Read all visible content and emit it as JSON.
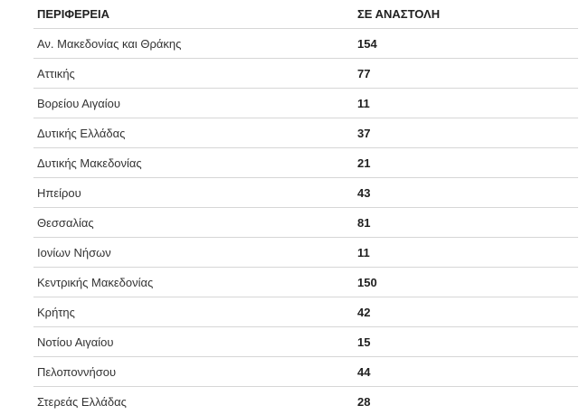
{
  "table": {
    "columns": [
      "ΠΕΡΙΦΕΡΕΙΑ",
      "ΣΕ ΑΝΑΣΤΟΛΗ"
    ],
    "rows": [
      {
        "region": "Αν. Μακεδονίας και Θράκης",
        "suspended": "154"
      },
      {
        "region": "Αττικής",
        "suspended": "77"
      },
      {
        "region": "Βορείου Αιγαίου",
        "suspended": "11"
      },
      {
        "region": "Δυτικής Ελλάδας",
        "suspended": "37"
      },
      {
        "region": "Δυτικής Μακεδονίας",
        "suspended": "21"
      },
      {
        "region": "Ηπείρου",
        "suspended": "43"
      },
      {
        "region": "Θεσσαλίας",
        "suspended": "81"
      },
      {
        "region": "Ιονίων Νήσων",
        "suspended": "11"
      },
      {
        "region": "Κεντρικής Μακεδονίας",
        "suspended": "150"
      },
      {
        "region": "Κρήτης",
        "suspended": "42"
      },
      {
        "region": "Νοτίου Αιγαίου",
        "suspended": "15"
      },
      {
        "region": "Πελοποννήσου",
        "suspended": "44"
      },
      {
        "region": "Στερεάς Ελλάδας",
        "suspended": "28"
      }
    ]
  },
  "chart_data": {
    "type": "table",
    "title": "",
    "columns": [
      "ΠΕΡΙΦΕΡΕΙΑ",
      "ΣΕ ΑΝΑΣΤΟΛΗ"
    ],
    "categories": [
      "Αν. Μακεδονίας και Θράκης",
      "Αττικής",
      "Βορείου Αιγαίου",
      "Δυτικής Ελλάδας",
      "Δυτικής Μακεδονίας",
      "Ηπείρου",
      "Θεσσαλίας",
      "Ιονίων Νήσων",
      "Κεντρικής Μακεδονίας",
      "Κρήτης",
      "Νοτίου Αιγαίου",
      "Πελοποννήσου",
      "Στερεάς Ελλάδας"
    ],
    "values": [
      154,
      77,
      11,
      37,
      21,
      43,
      81,
      11,
      150,
      42,
      15,
      44,
      28
    ]
  },
  "colors": {
    "border-color": "#d6d6d6",
    "header-text-color": "#212121",
    "row-text-color": "#333333",
    "background": "#ffffff"
  }
}
